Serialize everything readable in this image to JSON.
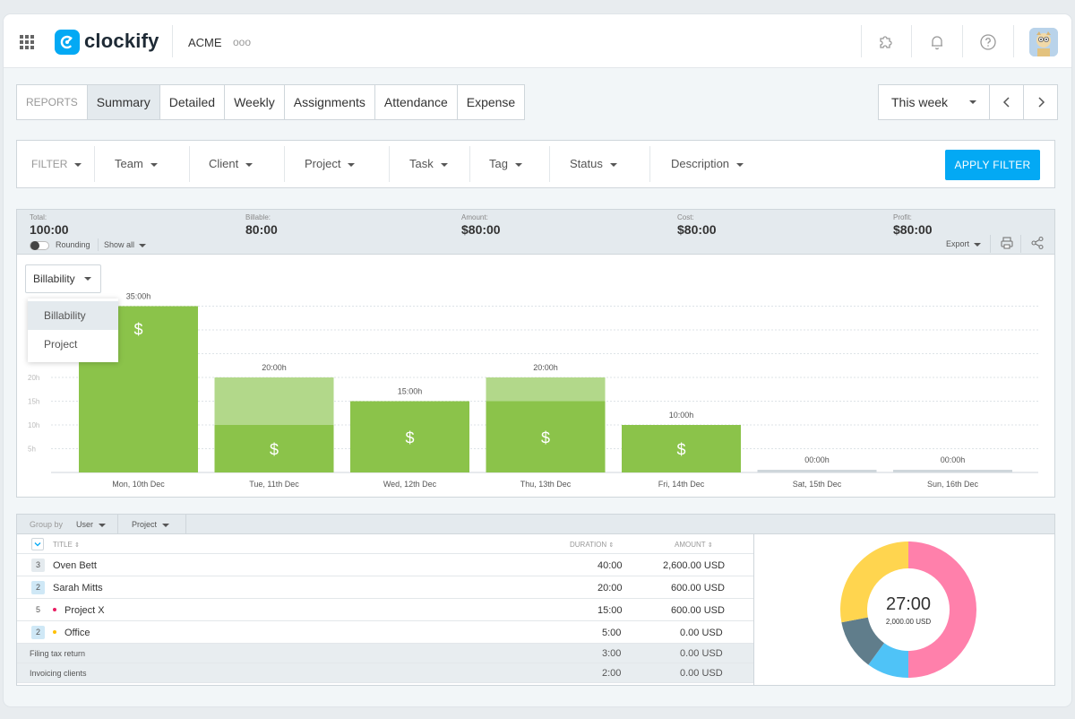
{
  "header": {
    "logo_text": "clockify",
    "workspace": "ACME",
    "more": "ooo"
  },
  "tabs": {
    "reports_label": "REPORTS",
    "items": [
      "Summary",
      "Detailed",
      "Weekly",
      "Assignments",
      "Attendance",
      "Expense"
    ],
    "active": "Summary"
  },
  "date_range": {
    "selected": "This week",
    "prev": "‹",
    "next": "›"
  },
  "filter": {
    "label": "FILTER",
    "items": [
      "Team",
      "Client",
      "Project",
      "Task",
      "Tag",
      "Status",
      "Description"
    ],
    "apply": "APPLY FILTER"
  },
  "stats": {
    "total_label": "Total:",
    "total": "100:00",
    "billable_label": "Billable:",
    "billable": "80:00",
    "amount_label": "Amount:",
    "amount": "$80:00",
    "cost_label": "Cost:",
    "cost": "$80:00",
    "profit_label": "Profit:",
    "profit": "$80:00",
    "rounding": "Rounding",
    "show_all": "Show all",
    "export": "Export"
  },
  "chart_select": {
    "selected": "Billability",
    "options": [
      "Billability",
      "Project"
    ]
  },
  "chart_data": {
    "type": "bar",
    "categories": [
      "Mon, 10th Dec",
      "Tue, 11th Dec",
      "Wed, 12th Dec",
      "Thu, 13th Dec",
      "Fri, 14th Dec",
      "Sat, 15th Dec",
      "Sun, 16th Dec"
    ],
    "series": [
      {
        "values": [
          35,
          10,
          15,
          15,
          10,
          0,
          0
        ]
      },
      {
        "values": [
          0,
          10,
          0,
          5,
          0,
          0,
          0
        ]
      }
    ],
    "total_labels": [
      "35:00h",
      "20:00h",
      "15:00h",
      "20:00h",
      "10:00h",
      "00:00h",
      "00:00h"
    ],
    "billable_marker": "$",
    "y_ticks": [
      "5h",
      "10h",
      "15h",
      "20h"
    ],
    "ylim": [
      0,
      35
    ],
    "grid": true,
    "colors": {
      "billable": "#8bc34a",
      "non_billable": "#b2d88a",
      "empty": "#cfd6db"
    }
  },
  "group_by": {
    "label": "Group by",
    "first": "User",
    "second": "Project"
  },
  "table": {
    "head": {
      "title": "TITLE",
      "duration": "DURATION",
      "amount": "AMOUNT"
    },
    "rows": [
      {
        "count": "3",
        "title": "Oven Bett",
        "duration": "40:00",
        "amount": "2,600.00 USD"
      },
      {
        "count": "2",
        "title": "Sarah Mitts",
        "duration": "20:00",
        "amount": "600.00 USD"
      },
      {
        "count": "5",
        "title": "Project X",
        "duration": "15:00",
        "amount": "600.00 USD",
        "dot": "#e91e63"
      },
      {
        "count": "2",
        "title": "Office",
        "duration": "5:00",
        "amount": "0.00 USD",
        "dot": "#ffc107"
      },
      {
        "title": "Filing tax return",
        "duration": "3:00",
        "amount": "0.00 USD"
      },
      {
        "title": "Invoicing clients",
        "duration": "2:00",
        "amount": "0.00 USD"
      }
    ]
  },
  "donut": {
    "center_value": "27:00",
    "center_sub": "2,000.00 USD",
    "segments": [
      {
        "value": 50,
        "color": "#ff80ab"
      },
      {
        "value": 10,
        "color": "#4fc3f7"
      },
      {
        "value": 12,
        "color": "#607d8b"
      },
      {
        "value": 28,
        "color": "#ffd54f"
      }
    ]
  },
  "colors": {
    "accent": "#03a9f4"
  }
}
